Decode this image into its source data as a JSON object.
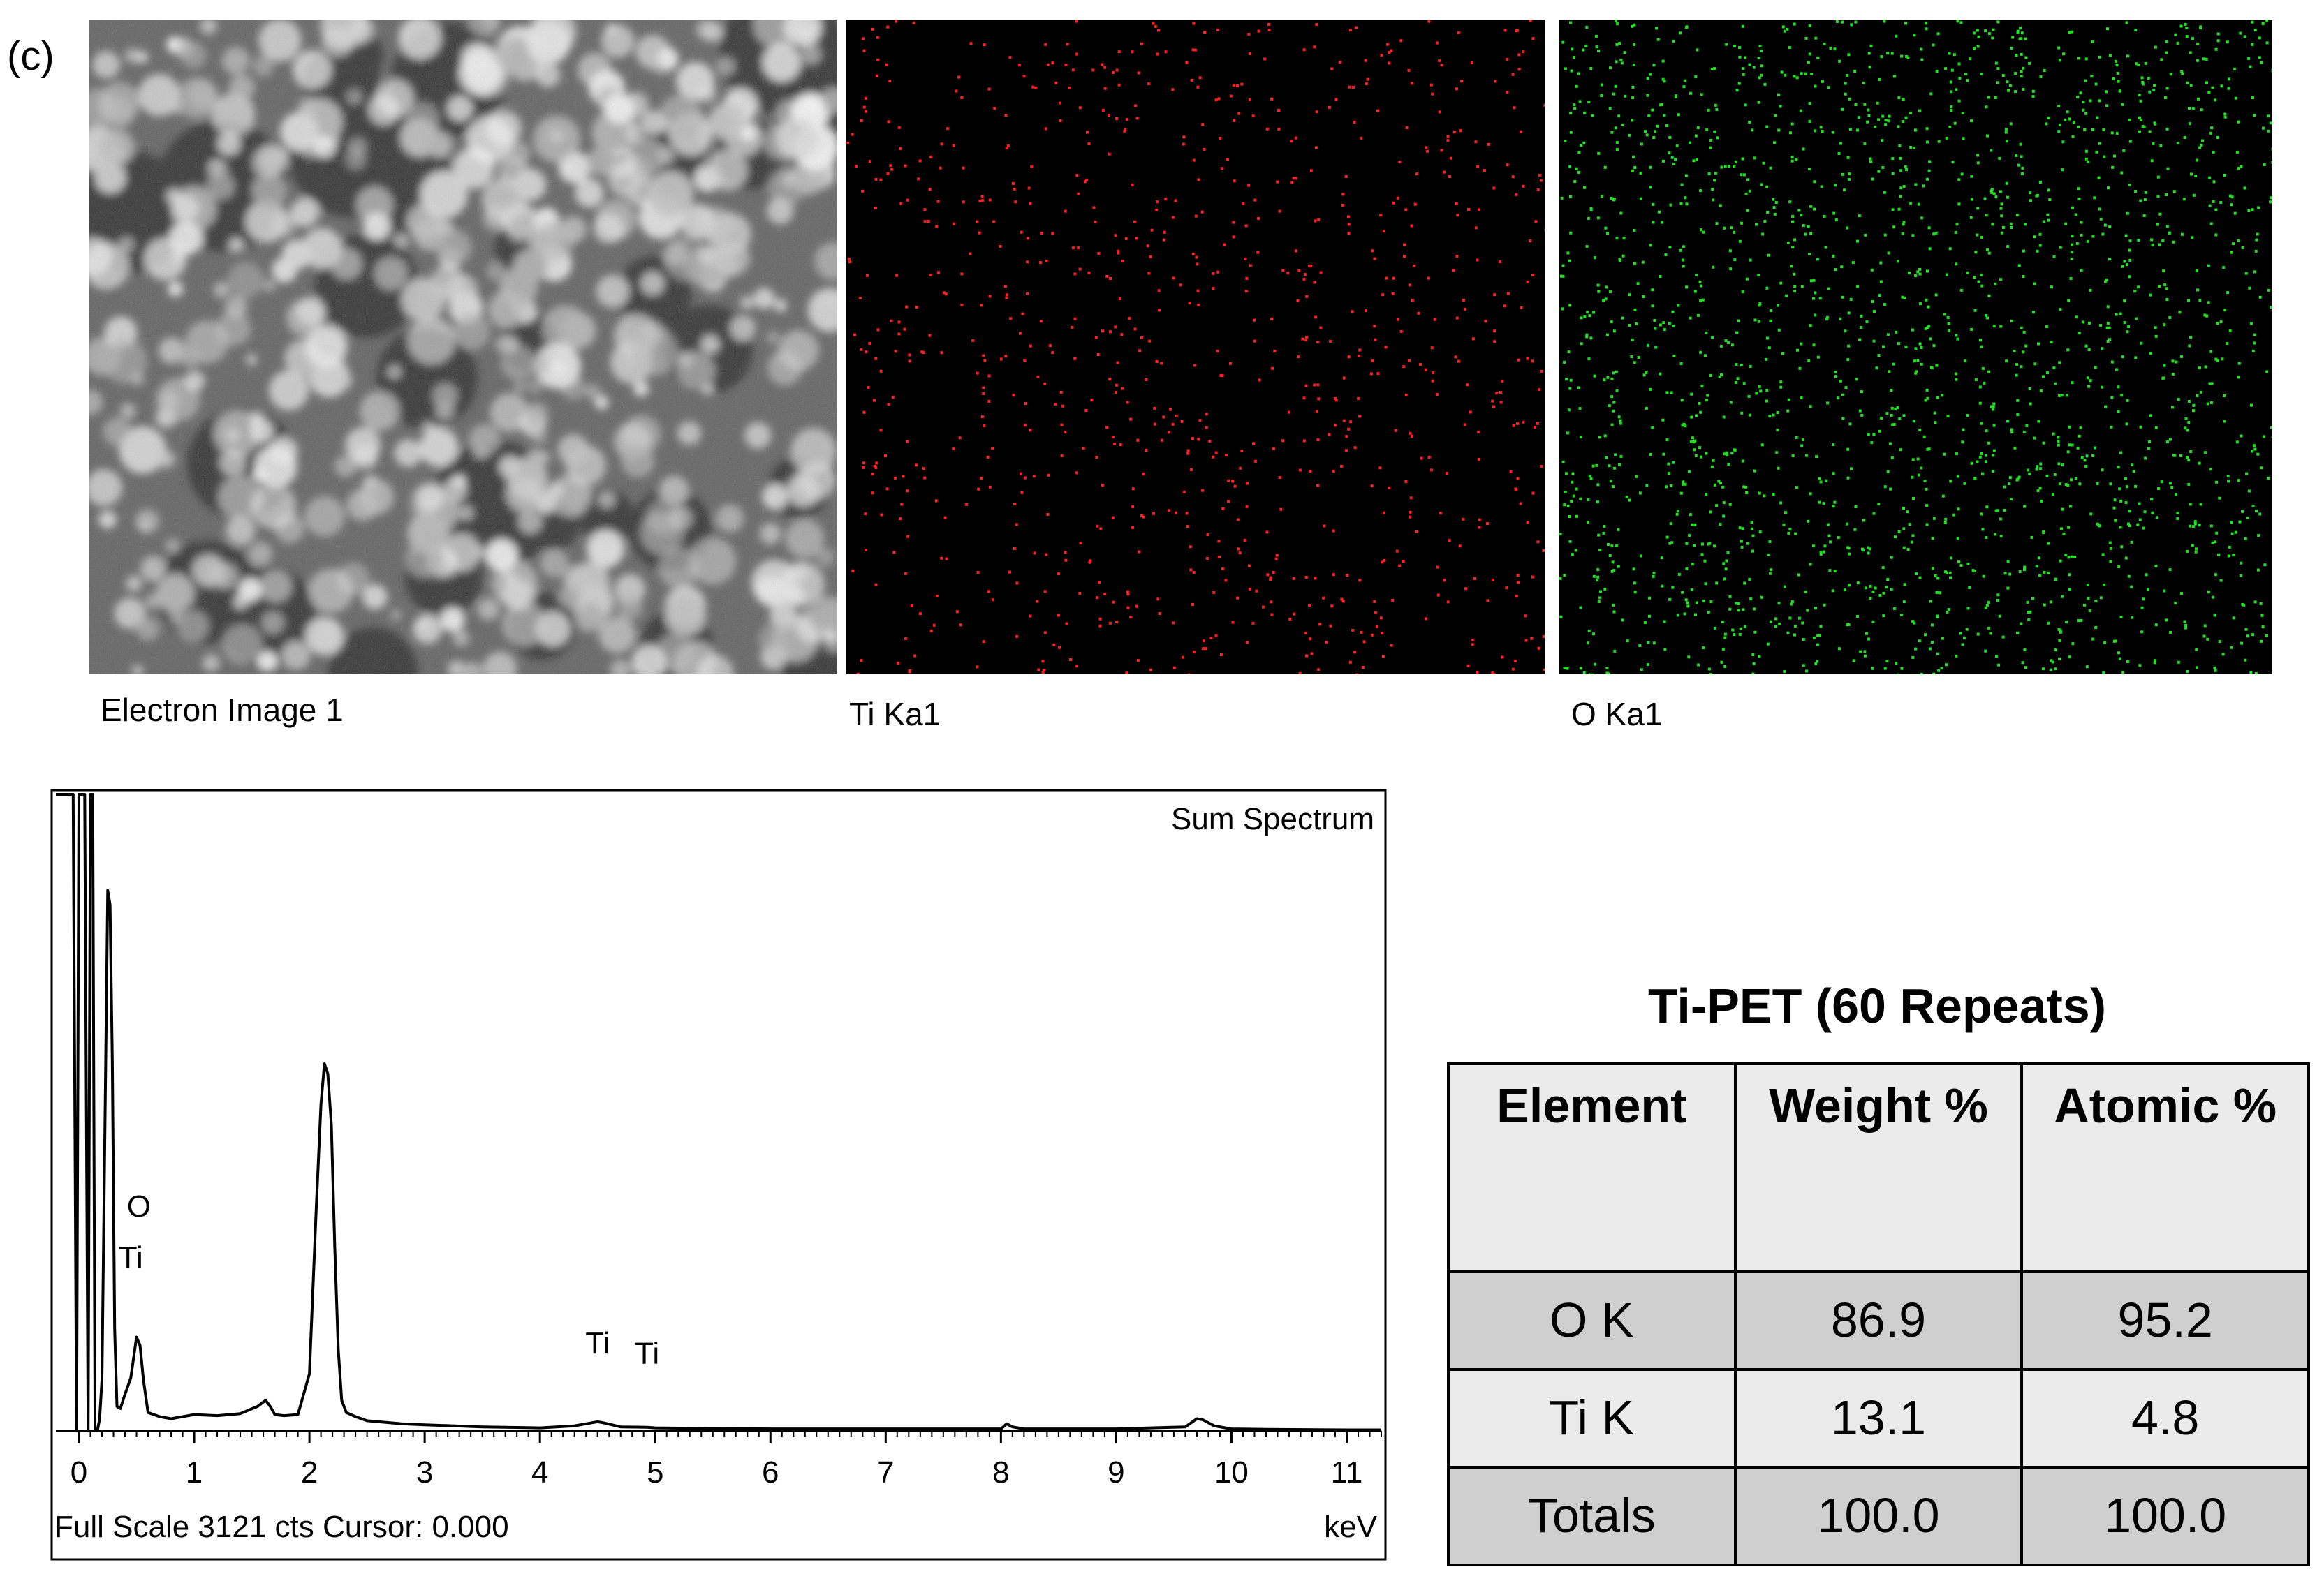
{
  "panel_label": "(c)",
  "maps": {
    "electron_caption": "Electron Image 1",
    "ti_caption": "Ti Ka1",
    "o_caption": "O Ka1",
    "ti_color": "#ff2020",
    "o_color": "#22e022"
  },
  "chart_data": {
    "type": "line",
    "title": "Sum Spectrum",
    "xlabel": "keV",
    "footer": "Full Scale 3121 cts Cursor: 0.000",
    "x_ticks": [
      "0",
      "1",
      "2",
      "3",
      "4",
      "5",
      "6",
      "7",
      "8",
      "9",
      "10",
      "11"
    ],
    "xlim": [
      -0.2,
      11.3
    ],
    "ylim": [
      0,
      3121
    ],
    "peak_labels": [
      {
        "text": "O",
        "x": 0.52,
        "y": 1050
      },
      {
        "text": "Ti",
        "x": 0.45,
        "y": 800
      },
      {
        "text": "Ti",
        "x": 4.5,
        "y": 380
      },
      {
        "text": "Ti",
        "x": 4.93,
        "y": 330
      }
    ],
    "series": [
      {
        "x": [
          -0.2,
          -0.1,
          -0.05,
          -0.02,
          0.0,
          0.02,
          0.05,
          0.08,
          0.1,
          0.12,
          0.14,
          0.16,
          0.18,
          0.2,
          0.22,
          0.25,
          0.27,
          0.29,
          0.31,
          0.33,
          0.36,
          0.4,
          0.45,
          0.5,
          0.53,
          0.56,
          0.6,
          0.65,
          0.7,
          0.8,
          1.0,
          1.2,
          1.4,
          1.55,
          1.62,
          1.66,
          1.7,
          1.78,
          1.9,
          2.0,
          2.06,
          2.1,
          2.13,
          2.16,
          2.19,
          2.22,
          2.25,
          2.28,
          2.32,
          2.4,
          2.5,
          2.8,
          3.0,
          3.5,
          4.0,
          4.3,
          4.45,
          4.5,
          4.55,
          4.7,
          4.93,
          5.0,
          5.5,
          6.0,
          7.0,
          8.0,
          8.05,
          8.1,
          8.2,
          9.0,
          9.6,
          9.7,
          9.75,
          9.85,
          10.0,
          10.3,
          11.0,
          11.3
        ],
        "y": [
          3121,
          3121,
          3121,
          0,
          3121,
          3121,
          3121,
          0,
          3121,
          3121,
          0,
          0,
          60,
          250,
          1200,
          2650,
          2580,
          1800,
          500,
          120,
          110,
          180,
          260,
          460,
          420,
          250,
          90,
          80,
          70,
          60,
          80,
          75,
          85,
          120,
          150,
          120,
          80,
          75,
          80,
          280,
          1100,
          1600,
          1800,
          1750,
          1500,
          900,
          400,
          150,
          90,
          70,
          50,
          35,
          30,
          20,
          15,
          25,
          40,
          45,
          40,
          20,
          18,
          15,
          12,
          10,
          10,
          10,
          35,
          20,
          10,
          10,
          20,
          60,
          55,
          25,
          10,
          8,
          5,
          5
        ]
      }
    ]
  },
  "table": {
    "title": "Ti-PET (60 Repeats)",
    "headers": [
      "Element",
      "Weight %",
      "Atomic %"
    ],
    "rows": [
      [
        "O K",
        "86.9",
        "95.2"
      ],
      [
        "Ti K",
        "13.1",
        "4.8"
      ],
      [
        "Totals",
        "100.0",
        "100.0"
      ]
    ]
  }
}
